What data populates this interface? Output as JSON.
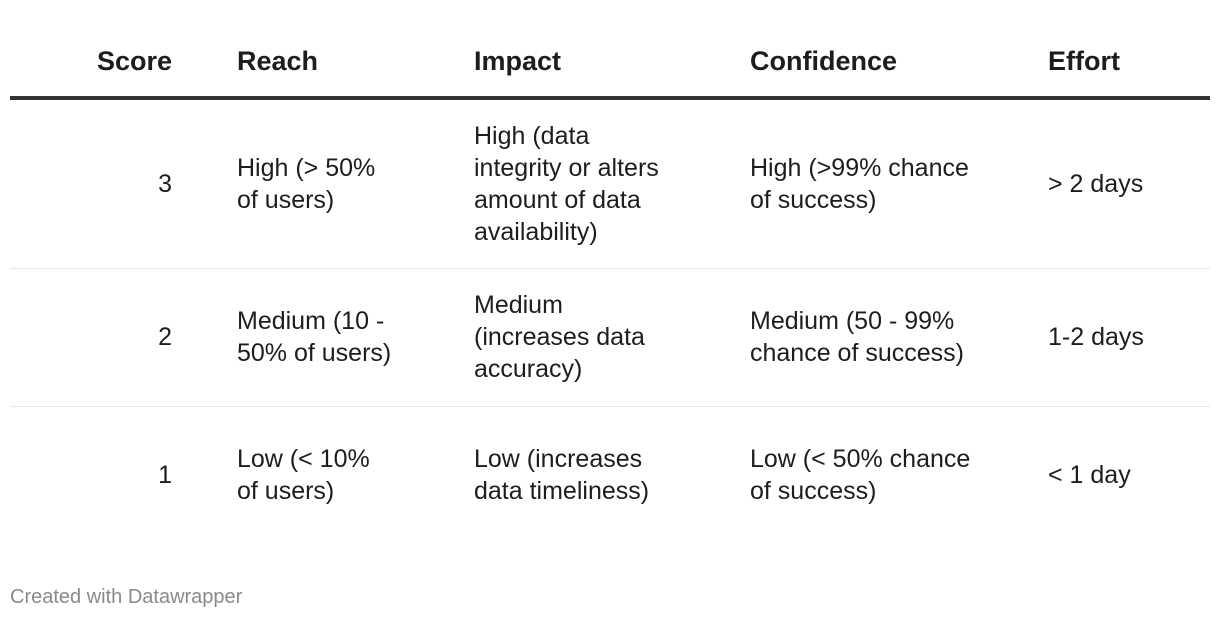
{
  "headers": {
    "score": "Score",
    "reach": "Reach",
    "impact": "Impact",
    "confidence": "Confidence",
    "effort": "Effort"
  },
  "rows": [
    {
      "score": "3",
      "reach": "High (> 50% of users)",
      "impact": "High (data integrity or alters amount of data availability)",
      "confidence": "High (>99% chance of success)",
      "effort": "> 2 days"
    },
    {
      "score": "2",
      "reach": "Medium (10 - 50% of users)",
      "impact": "Medium (increases data accuracy)",
      "confidence": "Medium (50 - 99% chance of success)",
      "effort": "1-2 days"
    },
    {
      "score": "1",
      "reach": "Low (< 10% of users)",
      "impact": "Low (increases data timeliness)",
      "confidence": "Low (< 50% chance of success)",
      "effort": "< 1 day"
    }
  ],
  "footer": {
    "credit": "Created with Datawrapper"
  }
}
